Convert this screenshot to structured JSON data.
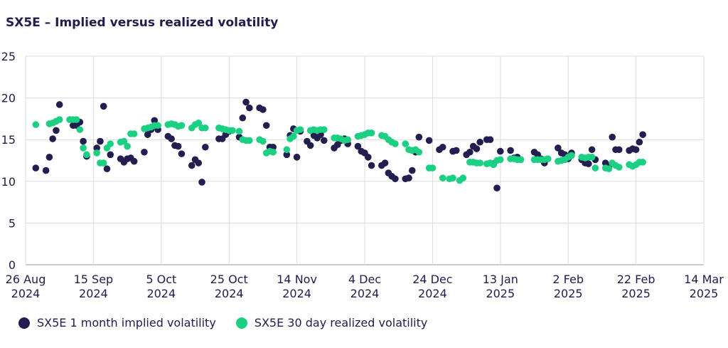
{
  "chart_data": {
    "type": "scatter",
    "title": "SX5E – Implied versus realized volatility",
    "xlabel": "",
    "ylabel": "",
    "ylim": [
      0,
      25
    ],
    "yticks": [
      0,
      5,
      10,
      15,
      20,
      25
    ],
    "xlim": [
      0,
      200
    ],
    "xticks": [
      {
        "day": 0,
        "line1": "26 Aug",
        "line2": "2024"
      },
      {
        "day": 20,
        "line1": "15 Sep",
        "line2": "2024"
      },
      {
        "day": 40,
        "line1": "5 Oct",
        "line2": "2024"
      },
      {
        "day": 60,
        "line1": "25 Oct",
        "line2": "2024"
      },
      {
        "day": 80,
        "line1": "14 Nov",
        "line2": "2024"
      },
      {
        "day": 100,
        "line1": "4 Dec",
        "line2": "2024"
      },
      {
        "day": 120,
        "line1": "24 Dec",
        "line2": "2024"
      },
      {
        "day": 140,
        "line1": "13 Jan",
        "line2": "2025"
      },
      {
        "day": 160,
        "line1": "2 Feb",
        "line2": "2025"
      },
      {
        "day": 180,
        "line1": "22 Feb",
        "line2": "2025"
      },
      {
        "day": 200,
        "line1": "14 Mar",
        "line2": "2025"
      }
    ],
    "grid": true,
    "legend_position": "bottom-left",
    "x_unit": "days since 26 Aug 2024",
    "series": [
      {
        "name": "SX5E 1 month implied volatility",
        "color": "#221e4f",
        "points": [
          [
            3,
            11.6
          ],
          [
            6,
            11.3
          ],
          [
            7,
            12.9
          ],
          [
            8,
            15.1
          ],
          [
            9,
            16.1
          ],
          [
            10,
            19.2
          ],
          [
            14,
            16.7
          ],
          [
            15,
            16.7
          ],
          [
            16,
            17.1
          ],
          [
            17,
            14.8
          ],
          [
            18,
            13
          ],
          [
            21,
            14
          ],
          [
            22,
            14.8
          ],
          [
            23,
            19
          ],
          [
            24,
            11.5
          ],
          [
            25,
            13.2
          ],
          [
            28,
            12.7
          ],
          [
            29,
            12.3
          ],
          [
            30,
            12.7
          ],
          [
            31,
            12.8
          ],
          [
            32,
            12.4
          ],
          [
            35,
            13.5
          ],
          [
            36,
            15.6
          ],
          [
            37,
            16.2
          ],
          [
            38,
            17.3
          ],
          [
            39,
            16.2
          ],
          [
            42,
            15.4
          ],
          [
            43,
            15.1
          ],
          [
            44,
            14.3
          ],
          [
            45,
            14.2
          ],
          [
            46,
            13.3
          ],
          [
            49,
            11.9
          ],
          [
            50,
            12.6
          ],
          [
            51,
            12.2
          ],
          [
            52,
            9.9
          ],
          [
            53,
            14.1
          ],
          [
            57,
            15.1
          ],
          [
            58,
            15.1
          ],
          [
            59,
            15.6
          ],
          [
            60,
            16
          ],
          [
            63,
            15.3
          ],
          [
            64,
            17.6
          ],
          [
            65,
            19.5
          ],
          [
            66,
            18.8
          ],
          [
            69,
            18.8
          ],
          [
            70,
            18.6
          ],
          [
            71,
            16.7
          ],
          [
            72,
            14.1
          ],
          [
            73,
            14.1
          ],
          [
            77,
            13.2
          ],
          [
            78,
            15.5
          ],
          [
            79,
            16.3
          ],
          [
            80,
            12.9
          ],
          [
            81,
            16
          ],
          [
            83,
            14.8
          ],
          [
            84,
            14.3
          ],
          [
            85,
            15.5
          ],
          [
            86,
            15.2
          ],
          [
            87,
            15.6
          ],
          [
            88,
            14.9
          ],
          [
            91,
            14
          ],
          [
            92,
            14.4
          ],
          [
            93,
            14.9
          ],
          [
            94,
            15.1
          ],
          [
            95,
            14.5
          ],
          [
            98,
            14.2
          ],
          [
            99,
            13.6
          ],
          [
            100,
            13.4
          ],
          [
            101,
            12.9
          ],
          [
            102,
            11.9
          ],
          [
            105,
            11.9
          ],
          [
            106,
            12.2
          ],
          [
            107,
            11
          ],
          [
            108,
            10.6
          ],
          [
            109,
            10.3
          ],
          [
            112,
            10.3
          ],
          [
            113,
            10.4
          ],
          [
            114,
            11.3
          ],
          [
            115,
            13.5
          ],
          [
            116,
            15.3
          ],
          [
            119,
            14.9
          ],
          [
            122,
            13.8
          ],
          [
            123,
            14.1
          ],
          [
            126,
            13.6
          ],
          [
            127,
            13.7
          ],
          [
            130,
            13.2
          ],
          [
            131,
            13.5
          ],
          [
            132,
            14.2
          ],
          [
            133,
            13.9
          ],
          [
            134,
            14.7
          ],
          [
            136,
            15
          ],
          [
            137,
            15
          ],
          [
            138,
            12.1
          ],
          [
            139,
            9.2
          ],
          [
            140,
            13.6
          ],
          [
            143,
            13.7
          ],
          [
            144,
            12.8
          ],
          [
            145,
            12.9
          ],
          [
            146,
            12.6
          ],
          [
            150,
            13.5
          ],
          [
            151,
            13.2
          ],
          [
            152,
            12.7
          ],
          [
            153,
            12.2
          ],
          [
            154,
            12.7
          ],
          [
            157,
            14
          ],
          [
            158,
            13.4
          ],
          [
            159,
            13.2
          ],
          [
            160,
            12.7
          ],
          [
            161,
            13.4
          ],
          [
            164,
            12.6
          ],
          [
            165,
            12.2
          ],
          [
            166,
            12.1
          ],
          [
            167,
            13.8
          ],
          [
            168,
            12.6
          ],
          [
            171,
            12.2
          ],
          [
            172,
            11.8
          ],
          [
            173,
            15.3
          ],
          [
            174,
            13.8
          ],
          [
            175,
            13.8
          ],
          [
            178,
            13.7
          ],
          [
            179,
            13.9
          ],
          [
            180,
            13.8
          ],
          [
            181,
            14.7
          ],
          [
            182,
            15.6
          ]
        ]
      },
      {
        "name": "SX5E 30 day realized volatility",
        "color": "#1bd082",
        "points": [
          [
            3,
            16.8
          ],
          [
            7,
            16.9
          ],
          [
            8,
            17
          ],
          [
            9,
            17.2
          ],
          [
            10,
            17.4
          ],
          [
            13,
            17.4
          ],
          [
            14,
            17.4
          ],
          [
            15,
            17.4
          ],
          [
            16,
            16.2
          ],
          [
            17,
            14
          ],
          [
            18,
            13.2
          ],
          [
            21,
            13.4
          ],
          [
            22,
            12.2
          ],
          [
            23,
            12.2
          ],
          [
            24,
            14
          ],
          [
            25,
            14.5
          ],
          [
            28,
            14.7
          ],
          [
            29,
            14.8
          ],
          [
            30,
            14.2
          ],
          [
            31,
            15.7
          ],
          [
            32,
            15.7
          ],
          [
            35,
            16.3
          ],
          [
            36,
            16.4
          ],
          [
            37,
            16.5
          ],
          [
            38,
            16.7
          ],
          [
            39,
            16.7
          ],
          [
            42,
            16.8
          ],
          [
            43,
            16.9
          ],
          [
            44,
            16.8
          ],
          [
            45,
            16.6
          ],
          [
            46,
            16.7
          ],
          [
            49,
            16.4
          ],
          [
            50,
            16.8
          ],
          [
            51,
            17
          ],
          [
            52,
            16.4
          ],
          [
            53,
            16.4
          ],
          [
            57,
            16.4
          ],
          [
            58,
            16.3
          ],
          [
            59,
            16.2
          ],
          [
            60,
            16.1
          ],
          [
            61,
            16.1
          ],
          [
            63,
            16
          ],
          [
            64,
            15
          ],
          [
            65,
            14.9
          ],
          [
            66,
            14.9
          ],
          [
            69,
            15
          ],
          [
            70,
            14.8
          ],
          [
            71,
            13.4
          ],
          [
            72,
            13.6
          ],
          [
            73,
            13.5
          ],
          [
            77,
            13.8
          ],
          [
            78,
            15.1
          ],
          [
            79,
            15.4
          ],
          [
            80,
            16.1
          ],
          [
            81,
            16.2
          ],
          [
            84,
            16.1
          ],
          [
            85,
            16.2
          ],
          [
            86,
            16.1
          ],
          [
            87,
            16.2
          ],
          [
            88,
            16.2
          ],
          [
            91,
            15.2
          ],
          [
            92,
            15.2
          ],
          [
            93,
            15.1
          ],
          [
            94,
            14.9
          ],
          [
            95,
            15
          ],
          [
            98,
            15.4
          ],
          [
            99,
            15.5
          ],
          [
            100,
            15.6
          ],
          [
            101,
            15.8
          ],
          [
            102,
            15.8
          ],
          [
            105,
            15.5
          ],
          [
            106,
            15.4
          ],
          [
            107,
            15
          ],
          [
            108,
            14.7
          ],
          [
            109,
            14.5
          ],
          [
            112,
            14.5
          ],
          [
            113,
            13.8
          ],
          [
            114,
            13.7
          ],
          [
            115,
            13.8
          ],
          [
            116,
            13.5
          ],
          [
            119,
            11.6
          ],
          [
            120,
            11.6
          ],
          [
            123,
            10.4
          ],
          [
            125,
            10.3
          ],
          [
            126,
            10.4
          ],
          [
            128,
            10.1
          ],
          [
            129,
            10.4
          ],
          [
            131,
            12.3
          ],
          [
            132,
            12.3
          ],
          [
            133,
            12.2
          ],
          [
            134,
            12.2
          ],
          [
            136,
            12.1
          ],
          [
            137,
            12.2
          ],
          [
            138,
            12
          ],
          [
            139,
            12.5
          ],
          [
            140,
            12.6
          ],
          [
            143,
            12.7
          ],
          [
            144,
            12.7
          ],
          [
            145,
            12.6
          ],
          [
            146,
            12.6
          ],
          [
            150,
            12.6
          ],
          [
            151,
            12.6
          ],
          [
            152,
            12.6
          ],
          [
            153,
            12.6
          ],
          [
            154,
            12.7
          ],
          [
            157,
            12.4
          ],
          [
            158,
            12.5
          ],
          [
            159,
            12.6
          ],
          [
            160,
            12.9
          ],
          [
            161,
            13.1
          ],
          [
            164,
            12.9
          ],
          [
            165,
            12.8
          ],
          [
            166,
            12.9
          ],
          [
            167,
            12.9
          ],
          [
            168,
            11.6
          ],
          [
            171,
            11.6
          ],
          [
            172,
            11.5
          ],
          [
            173,
            12.2
          ],
          [
            174,
            11.9
          ],
          [
            175,
            11.7
          ],
          [
            178,
            12
          ],
          [
            179,
            11.8
          ],
          [
            180,
            12
          ],
          [
            181,
            12.3
          ],
          [
            182,
            12.3
          ]
        ]
      }
    ]
  }
}
